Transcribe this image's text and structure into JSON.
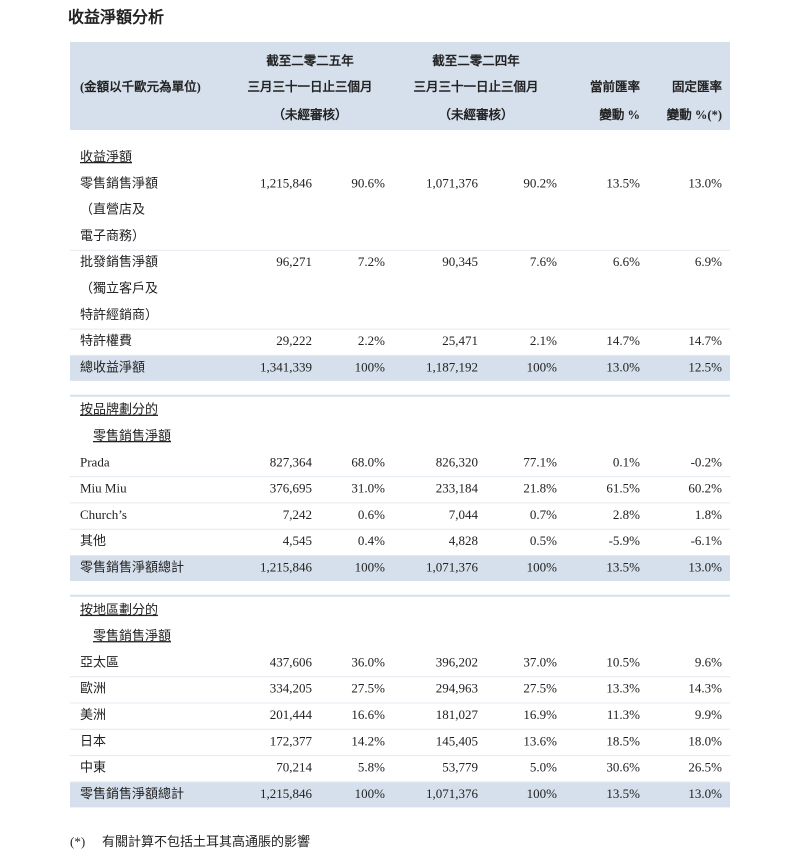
{
  "title": "收益淨額分析",
  "header": {
    "unit_note": "(金額以千歐元為單位)",
    "columns": [
      {
        "lines": [
          "截至二零二五年",
          "三月三十一日止三個月",
          "（未經審核）"
        ]
      },
      {
        "lines": [
          "截至二零二四年",
          "三月三十一日止三個月",
          "（未經審核）"
        ]
      },
      {
        "lines": [
          "當前匯率",
          "變動 %"
        ]
      },
      {
        "lines": [
          "固定匯率",
          "變動 %(*)"
        ]
      }
    ]
  },
  "sections": [
    {
      "heading": [
        "收益淨額"
      ],
      "rows": [
        {
          "label": [
            "零售銷售淨額",
            "（直營店及",
            "電子商務）"
          ],
          "cells": [
            "1,215,846",
            "90.6%",
            "1,071,376",
            "90.2%",
            "13.5%",
            "13.0%"
          ]
        },
        {
          "label": [
            "批發銷售淨額",
            "（獨立客戶及",
            "特許經銷商）"
          ],
          "cells": [
            "96,271",
            "7.2%",
            "90,345",
            "7.6%",
            "6.6%",
            "6.9%"
          ]
        },
        {
          "label": [
            "特許權費"
          ],
          "cells": [
            "29,222",
            "2.2%",
            "25,471",
            "2.1%",
            "14.7%",
            "14.7%"
          ]
        },
        {
          "label": [
            "總收益淨額"
          ],
          "total": true,
          "cells": [
            "1,341,339",
            "100%",
            "1,187,192",
            "100%",
            "13.0%",
            "12.5%"
          ]
        }
      ]
    },
    {
      "heading": [
        "按品牌劃分的",
        "零售銷售淨額"
      ],
      "rows": [
        {
          "label": [
            "Prada"
          ],
          "cells": [
            "827,364",
            "68.0%",
            "826,320",
            "77.1%",
            "0.1%",
            "-0.2%"
          ]
        },
        {
          "label": [
            "Miu Miu"
          ],
          "cells": [
            "376,695",
            "31.0%",
            "233,184",
            "21.8%",
            "61.5%",
            "60.2%"
          ]
        },
        {
          "label": [
            "Church’s"
          ],
          "cells": [
            "7,242",
            "0.6%",
            "7,044",
            "0.7%",
            "2.8%",
            "1.8%"
          ]
        },
        {
          "label": [
            "其他"
          ],
          "cells": [
            "4,545",
            "0.4%",
            "4,828",
            "0.5%",
            "-5.9%",
            "-6.1%"
          ]
        },
        {
          "label": [
            "零售銷售淨額總計"
          ],
          "total": true,
          "cells": [
            "1,215,846",
            "100%",
            "1,071,376",
            "100%",
            "13.5%",
            "13.0%"
          ]
        }
      ]
    },
    {
      "heading": [
        "按地區劃分的",
        "零售銷售淨額"
      ],
      "rows": [
        {
          "label": [
            "亞太區"
          ],
          "cells": [
            "437,606",
            "36.0%",
            "396,202",
            "37.0%",
            "10.5%",
            "9.6%"
          ]
        },
        {
          "label": [
            "歐洲"
          ],
          "cells": [
            "334,205",
            "27.5%",
            "294,963",
            "27.5%",
            "13.3%",
            "14.3%"
          ]
        },
        {
          "label": [
            "美洲"
          ],
          "cells": [
            "201,444",
            "16.6%",
            "181,027",
            "16.9%",
            "11.3%",
            "9.9%"
          ]
        },
        {
          "label": [
            "日本"
          ],
          "cells": [
            "172,377",
            "14.2%",
            "145,405",
            "13.6%",
            "18.5%",
            "18.0%"
          ]
        },
        {
          "label": [
            "中東"
          ],
          "cells": [
            "70,214",
            "5.8%",
            "53,779",
            "5.0%",
            "30.6%",
            "26.5%"
          ]
        },
        {
          "label": [
            "零售銷售淨額總計"
          ],
          "total": true,
          "cells": [
            "1,215,846",
            "100%",
            "1,071,376",
            "100%",
            "13.5%",
            "13.0%"
          ]
        }
      ]
    }
  ],
  "footnote": {
    "marker": "(*)",
    "text": "有關計算不包括土耳其高通脹的影響"
  }
}
